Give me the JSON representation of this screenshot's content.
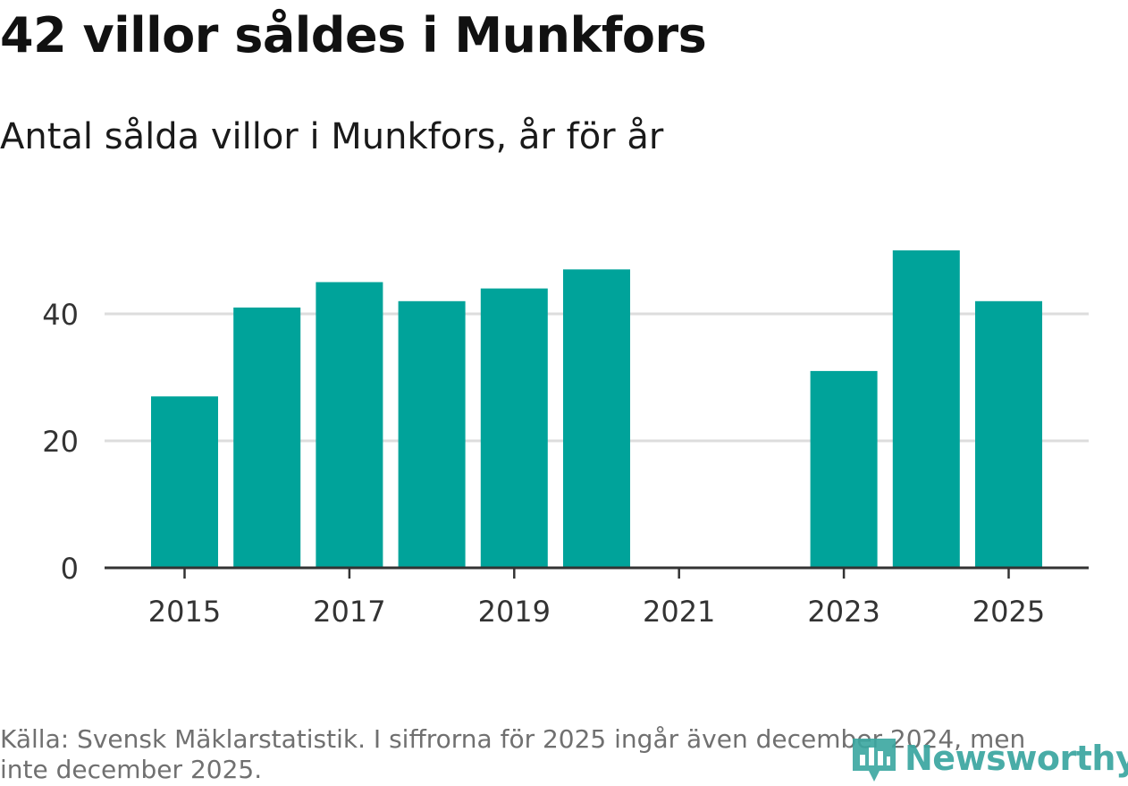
{
  "headline": "42 villor såldes i Munkfors",
  "chart_data": {
    "type": "bar",
    "title": "42 villor såldes i Munkfors",
    "subtitle": "Antal sålda villor i Munkfors, år för år",
    "categories": [
      2015,
      2016,
      2017,
      2018,
      2019,
      2020,
      2021,
      2022,
      2023,
      2024,
      2025
    ],
    "values": [
      27,
      41,
      45,
      42,
      44,
      47,
      null,
      null,
      31,
      50,
      42
    ],
    "x_tick_labels": [
      "2015",
      "2017",
      "2019",
      "2021",
      "2023",
      "2025"
    ],
    "y_ticks": [
      0,
      20,
      40
    ],
    "ylim": [
      0,
      52
    ],
    "xlabel": "",
    "ylabel": "",
    "grid": true,
    "legend": "none"
  },
  "source_text": "Källa: Svensk Mäklarstatistik. I siffrorna för 2025 ingår även december 2024, men inte december 2025.",
  "brand": {
    "name": "Newsworthy"
  },
  "colors": {
    "bar": "#00a39a",
    "grid": "#dddddd",
    "axis": "#333333",
    "tick_text": "#333333",
    "brand": "#3aa6a0"
  }
}
